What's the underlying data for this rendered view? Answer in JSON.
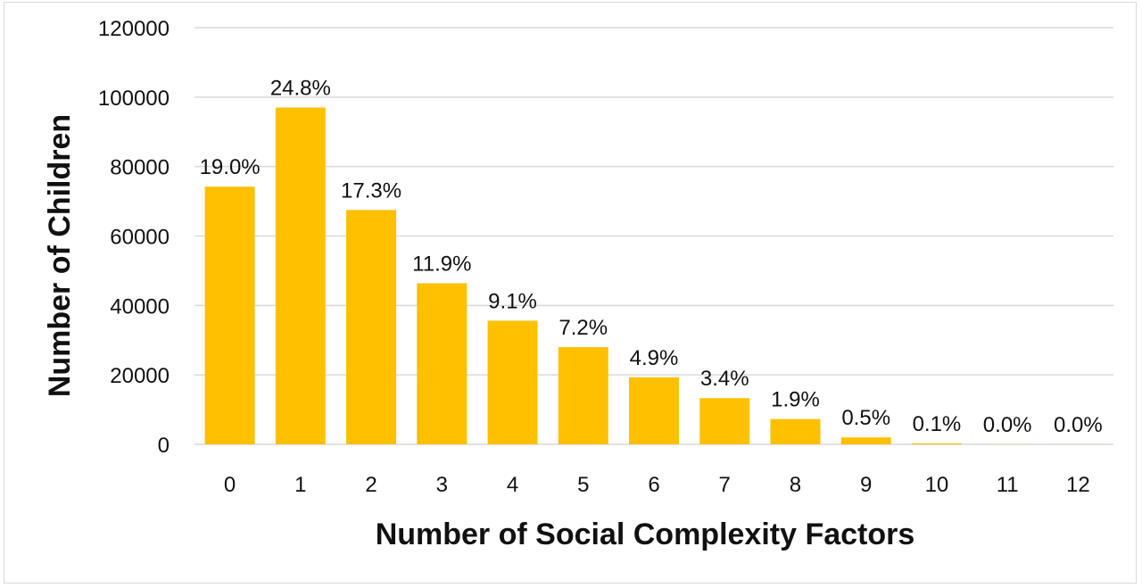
{
  "chart_data": {
    "type": "bar",
    "title": "",
    "xlabel": "Number of Social Complexity Factors",
    "ylabel": "Number of Children",
    "categories": [
      "0",
      "1",
      "2",
      "3",
      "4",
      "5",
      "6",
      "7",
      "8",
      "9",
      "10",
      "11",
      "12"
    ],
    "values": [
      74200,
      97000,
      67500,
      46400,
      35600,
      28000,
      19300,
      13300,
      7300,
      2000,
      300,
      50,
      20
    ],
    "data_labels": [
      "19.0%",
      "24.8%",
      "17.3%",
      "11.9%",
      "9.1%",
      "7.2%",
      "4.9%",
      "3.4%",
      "1.9%",
      "0.5%",
      "0.1%",
      "0.0%",
      "0.0%"
    ],
    "ylim": [
      0,
      120000
    ],
    "yticks": [
      0,
      20000,
      40000,
      60000,
      80000,
      100000,
      120000
    ],
    "grid": true,
    "legend": "none",
    "colors": {
      "bar": "#FFC000",
      "grid": "#d9d9d9",
      "axis": "#d9d9d9"
    }
  }
}
